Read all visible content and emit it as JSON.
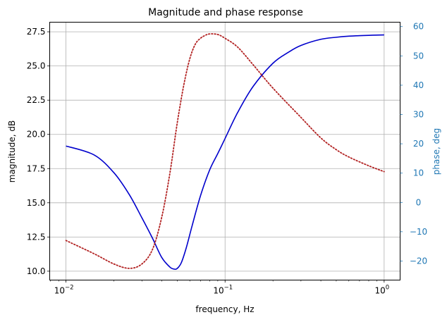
{
  "chart_data": {
    "type": "line",
    "title": "Magnitude and phase response",
    "xlabel": "frequency, Hz",
    "ylabel": "magnitude, dB",
    "ylabel_right": "phase, deg",
    "xscale": "log",
    "xlim": [
      0.0079,
      1.26
    ],
    "ylim": [
      9.35,
      28.2
    ],
    "ylim_right": [
      -26.5,
      61.5
    ],
    "x_ticks": [
      {
        "value": 0.01,
        "base": "10",
        "exp": "−2"
      },
      {
        "value": 0.1,
        "base": "10",
        "exp": "−1"
      },
      {
        "value": 1,
        "base": "10",
        "exp": "0"
      }
    ],
    "y_ticks": [
      "10.0",
      "12.5",
      "15.0",
      "17.5",
      "20.0",
      "22.5",
      "25.0",
      "27.5"
    ],
    "y_ticks_right": [
      "−20",
      "−10",
      "0",
      "10",
      "20",
      "30",
      "40",
      "50",
      "60"
    ],
    "grid": true,
    "series": [
      {
        "axis": "left",
        "color": "#0000cc",
        "style": "solid",
        "x": [
          0.01,
          0.015,
          0.02,
          0.025,
          0.03,
          0.035,
          0.04,
          0.045,
          0.048,
          0.05,
          0.053,
          0.057,
          0.062,
          0.07,
          0.08,
          0.09,
          0.1,
          0.12,
          0.15,
          0.2,
          0.25,
          0.3,
          0.4,
          0.5,
          0.6,
          0.8,
          1.0
        ],
        "values": [
          19.15,
          18.5,
          17.2,
          15.6,
          13.9,
          12.4,
          11.0,
          10.3,
          10.15,
          10.2,
          10.6,
          11.7,
          13.3,
          15.5,
          17.4,
          18.6,
          19.7,
          21.6,
          23.5,
          25.2,
          26.0,
          26.5,
          26.95,
          27.1,
          27.18,
          27.24,
          27.27
        ]
      },
      {
        "axis": "right",
        "color": "#b22222",
        "style": "dotted",
        "x": [
          0.01,
          0.015,
          0.02,
          0.025,
          0.03,
          0.035,
          0.04,
          0.045,
          0.05,
          0.055,
          0.06,
          0.065,
          0.07,
          0.075,
          0.08,
          0.09,
          0.1,
          0.12,
          0.15,
          0.2,
          0.3,
          0.4,
          0.5,
          0.6,
          0.8,
          1.0
        ],
        "values": [
          -13,
          -17.5,
          -21,
          -22.5,
          -21,
          -16,
          -5,
          10,
          27,
          40,
          49,
          54,
          56,
          57,
          57.5,
          57.3,
          56,
          53,
          47,
          39,
          29,
          22,
          18,
          15.5,
          12.5,
          10.5
        ]
      }
    ]
  }
}
